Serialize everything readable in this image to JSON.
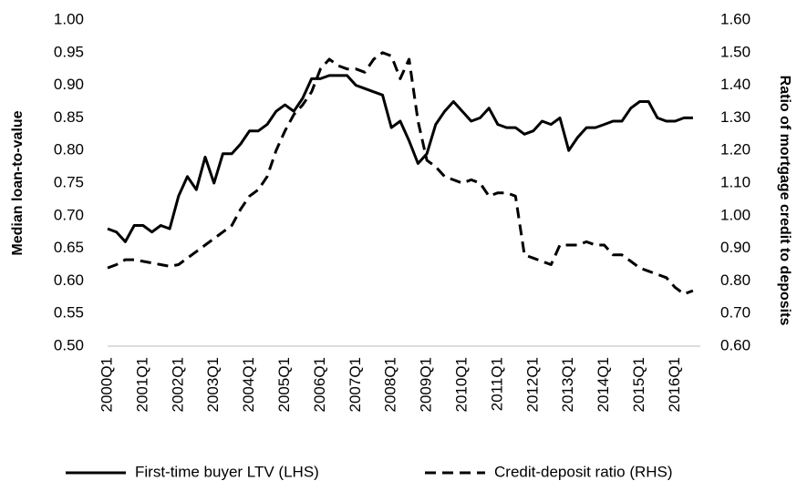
{
  "chart_data": {
    "type": "line",
    "y_label": "Median loan-to-value",
    "y2_label": "Ratio of mortgage credit to deposits",
    "categories": [
      "2000Q1",
      null,
      null,
      null,
      "2001Q1",
      null,
      null,
      null,
      "2002Q1",
      null,
      null,
      null,
      "2003Q1",
      null,
      null,
      null,
      "2004Q1",
      null,
      null,
      null,
      "2005Q1",
      null,
      null,
      null,
      "2006Q1",
      null,
      null,
      null,
      "2007Q1",
      null,
      null,
      null,
      "2008Q1",
      null,
      null,
      null,
      "2009Q1",
      null,
      null,
      null,
      "2010Q1",
      null,
      null,
      null,
      "2011Q1",
      null,
      null,
      null,
      "2012Q1",
      null,
      null,
      null,
      "2013Q1",
      null,
      null,
      null,
      "2014Q1",
      null,
      null,
      null,
      "2015Q1",
      null,
      null,
      null,
      "2016Q1",
      null,
      null
    ],
    "series": [
      {
        "name": "First-time buyer LTV (LHS)",
        "color": "#000000",
        "dash": false,
        "values": [
          0.68,
          0.675,
          0.66,
          0.685,
          0.685,
          0.675,
          0.685,
          0.68,
          0.73,
          0.76,
          0.74,
          0.79,
          0.75,
          0.795,
          0.795,
          0.81,
          0.83,
          0.83,
          0.84,
          0.86,
          0.87,
          0.86,
          0.88,
          0.91,
          0.91,
          0.915,
          0.915,
          0.915,
          0.9,
          0.895,
          0.89,
          0.885,
          0.835,
          0.845,
          0.815,
          0.78,
          0.795,
          0.84,
          0.86,
          0.875,
          0.86,
          0.845,
          0.85,
          0.865,
          0.84,
          0.835,
          0.835,
          0.825,
          0.83,
          0.845,
          0.84,
          0.85,
          0.8,
          0.82,
          0.835,
          0.835,
          0.84,
          0.845,
          0.845,
          0.865,
          0.875,
          0.875,
          0.85,
          0.845,
          0.845,
          0.85,
          0.85
        ]
      },
      {
        "name": "Credit-deposit ratio (RHS)",
        "color": "#000000",
        "dash": true,
        "axis": "y2",
        "values": [
          0.84,
          0.85,
          0.865,
          0.865,
          0.86,
          0.855,
          0.85,
          0.845,
          0.85,
          0.87,
          0.89,
          0.91,
          0.93,
          0.95,
          0.97,
          1.02,
          1.06,
          1.08,
          1.12,
          1.2,
          1.26,
          1.31,
          1.34,
          1.38,
          1.45,
          1.48,
          1.46,
          1.45,
          1.45,
          1.44,
          1.48,
          1.5,
          1.49,
          1.42,
          1.48,
          1.29,
          1.17,
          1.15,
          1.12,
          1.11,
          1.1,
          1.11,
          1.1,
          1.06,
          1.07,
          1.07,
          1.06,
          0.88,
          0.87,
          0.86,
          0.85,
          0.91,
          0.91,
          0.91,
          0.92,
          0.91,
          0.91,
          0.88,
          0.88,
          0.86,
          0.84,
          0.83,
          0.82,
          0.81,
          0.78,
          0.76,
          0.77
        ]
      }
    ],
    "ylim": [
      0.5,
      1.0
    ],
    "yticks": [
      {
        "value": 0.5,
        "label": "0.50"
      },
      0.55,
      {
        "value": 0.6,
        "label": "0.60"
      },
      0.65,
      {
        "value": 0.7,
        "label": "0.70"
      },
      0.75,
      {
        "value": 0.8,
        "label": "0.80"
      },
      0.85,
      {
        "value": 0.9,
        "label": "0.90"
      },
      0.95,
      {
        "value": 1.0,
        "label": "1.00"
      }
    ],
    "y2lim": [
      0.6,
      1.6
    ],
    "y2ticks": [
      {
        "value": 0.6,
        "label": "0.60"
      },
      {
        "value": 0.7,
        "label": "0.70"
      },
      {
        "value": 0.8,
        "label": "0.80"
      },
      {
        "value": 0.9,
        "label": "0.90"
      },
      {
        "value": 1.0,
        "label": "1.00"
      },
      {
        "value": 1.1,
        "label": "1.10"
      },
      {
        "value": 1.2,
        "label": "1.20"
      },
      {
        "value": 1.3,
        "label": "1.30"
      },
      {
        "value": 1.4,
        "label": "1.40"
      },
      {
        "value": 1.5,
        "label": "1.50"
      },
      {
        "value": 1.6,
        "label": "1.60"
      }
    ],
    "grid": false,
    "legend": "bottom"
  }
}
